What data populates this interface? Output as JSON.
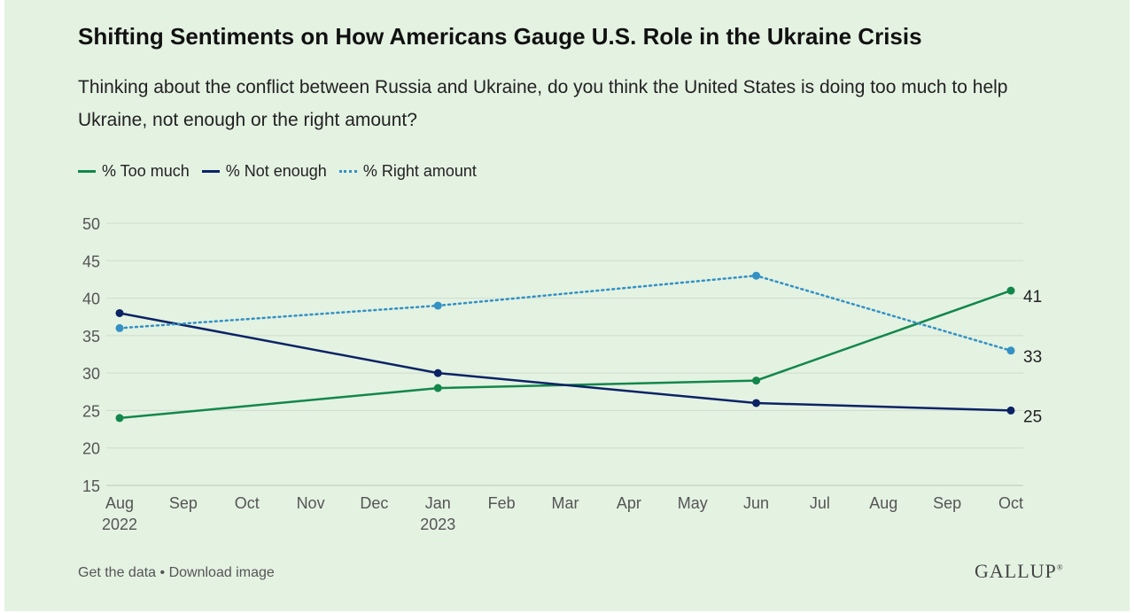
{
  "title": "Shifting Sentiments on How Americans Gauge U.S. Role in the Ukraine Crisis",
  "subtitle": "Thinking about the conflict between Russia and Ukraine, do you think the United States is doing too much to help Ukraine, not enough or the right amount?",
  "footer": {
    "get_data": "Get the data",
    "separator": "•",
    "download": "Download image",
    "brand": "GALLUP",
    "brand_mark": "®"
  },
  "chart_data": {
    "type": "line",
    "x_axis": {
      "start": "2022-08",
      "end": "2023-10",
      "ticks": [
        {
          "label": "Aug",
          "year": "2022"
        },
        {
          "label": "Sep",
          "year": ""
        },
        {
          "label": "Oct",
          "year": ""
        },
        {
          "label": "Nov",
          "year": ""
        },
        {
          "label": "Dec",
          "year": ""
        },
        {
          "label": "Jan",
          "year": "2023"
        },
        {
          "label": "Feb",
          "year": ""
        },
        {
          "label": "Mar",
          "year": ""
        },
        {
          "label": "Apr",
          "year": ""
        },
        {
          "label": "May",
          "year": ""
        },
        {
          "label": "Jun",
          "year": ""
        },
        {
          "label": "Jul",
          "year": ""
        },
        {
          "label": "Aug",
          "year": ""
        },
        {
          "label": "Sep",
          "year": ""
        },
        {
          "label": "Oct",
          "year": ""
        }
      ]
    },
    "y_axis": {
      "min": 15,
      "max": 50,
      "ticks": [
        15,
        20,
        25,
        30,
        35,
        40,
        45,
        50
      ]
    },
    "grid": true,
    "legend_position": "top-left",
    "series": [
      {
        "name": "% Too much",
        "color": "#13874b",
        "style": "solid",
        "end_label": "41",
        "points": [
          {
            "x": "2022-08",
            "y": 24
          },
          {
            "x": "2023-01",
            "y": 28
          },
          {
            "x": "2023-06",
            "y": 29
          },
          {
            "x": "2023-10",
            "y": 41
          }
        ]
      },
      {
        "name": "% Not enough",
        "color": "#0b2364",
        "style": "solid",
        "end_label": "25",
        "points": [
          {
            "x": "2022-08",
            "y": 38
          },
          {
            "x": "2023-01",
            "y": 30
          },
          {
            "x": "2023-06",
            "y": 26
          },
          {
            "x": "2023-10",
            "y": 25
          }
        ]
      },
      {
        "name": "% Right amount",
        "color": "#3391c4",
        "style": "dotted",
        "end_label": "33",
        "points": [
          {
            "x": "2022-08",
            "y": 36
          },
          {
            "x": "2023-01",
            "y": 39
          },
          {
            "x": "2023-06",
            "y": 43
          },
          {
            "x": "2023-10",
            "y": 33
          }
        ]
      }
    ]
  }
}
